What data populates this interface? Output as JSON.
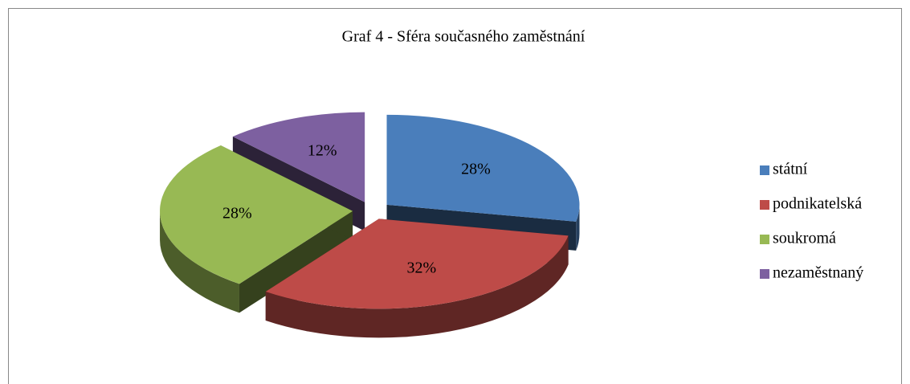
{
  "chart_data": {
    "type": "pie",
    "title": "Graf 4 - Sféra současného zaměstnání",
    "categories": [
      "státní",
      "podnikatelská",
      "soukromá",
      "nezaměstnaný"
    ],
    "values": [
      28,
      32,
      28,
      12
    ],
    "value_labels": [
      "28%",
      "32%",
      "28%",
      "12%"
    ],
    "colors": [
      "#4a7ebb",
      "#be4b48",
      "#98b954",
      "#7d60a0"
    ],
    "legend": "right"
  }
}
